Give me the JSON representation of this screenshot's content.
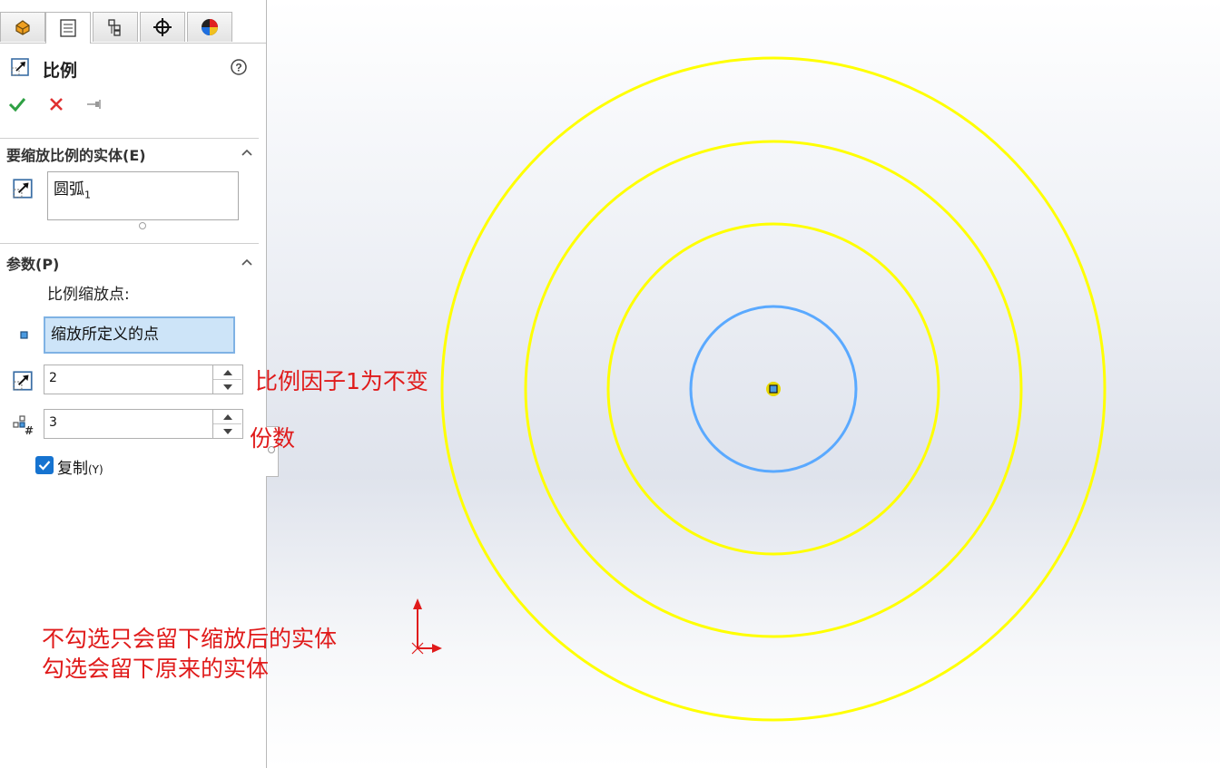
{
  "panel": {
    "tabs": [
      {
        "name": "featuremanager-tab",
        "icon": "feature-tree-icon"
      },
      {
        "name": "propertymanager-tab",
        "icon": "property-manager-icon"
      },
      {
        "name": "configurationmanager-tab",
        "icon": "configuration-icon"
      },
      {
        "name": "dimxpert-tab",
        "icon": "crosshair-icon"
      },
      {
        "name": "display-manager-tab",
        "icon": "appearance-icon"
      }
    ],
    "title": "比例",
    "entities_section": {
      "label": "要缩放比例的实体(E)",
      "selected_item": "圆弧",
      "selected_item_index": "1"
    },
    "params_section": {
      "label": "参数(P)",
      "scale_point_label": "比例缩放点:",
      "scale_point_value": "缩放所定义的点",
      "scale_factor_value": "2",
      "copies_value": "3",
      "copy_checkbox_label": "复制",
      "copy_checkbox_shortcut": "(Y)",
      "copy_checked": true
    }
  },
  "annotations": {
    "scale_factor_note": "比例因子1为不变",
    "copies_note": "份数",
    "copy_note_line1": "不勾选只会留下缩放后的实体",
    "copy_note_line2": "勾选会留下原来的实体"
  },
  "colors": {
    "circle_scaled": "#ffff00",
    "circle_original": "#5aa9ff",
    "annotation": "#e01b1b",
    "accept": "#2ea043",
    "cancel": "#e03030"
  }
}
